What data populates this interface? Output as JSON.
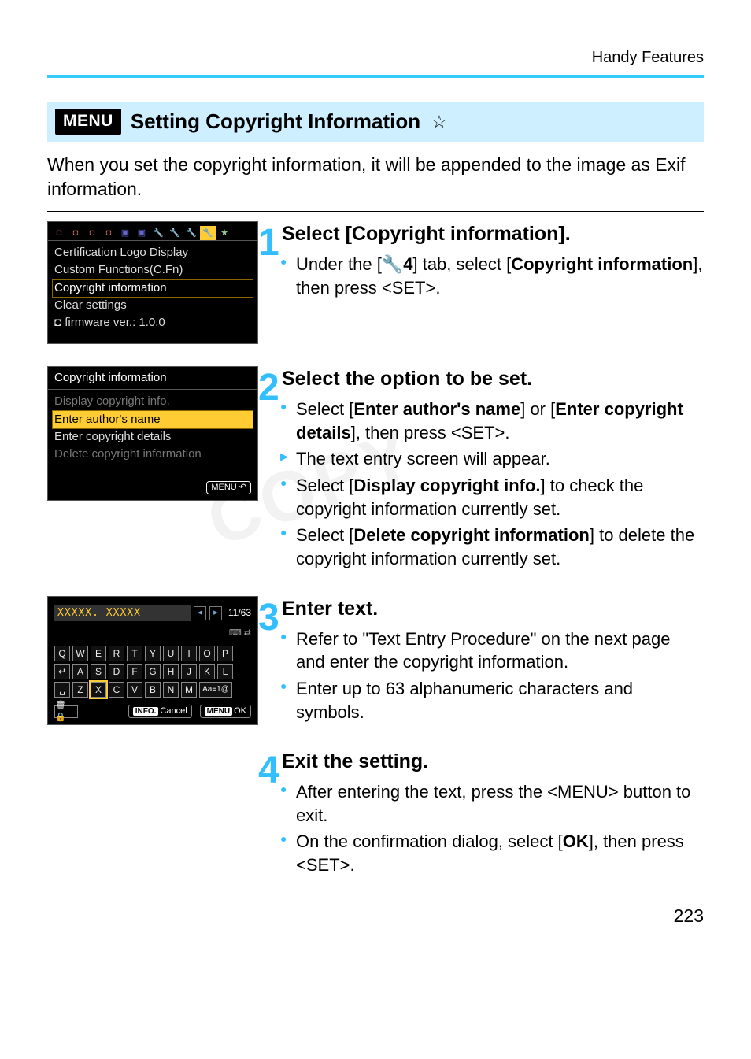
{
  "header": {
    "section": "Handy Features"
  },
  "heading": {
    "badge": "MENU",
    "title": "Setting Copyright Information",
    "star": "☆"
  },
  "intro": "When you set the copyright information, it will be appended to the image as Exif information.",
  "lcd_menu": {
    "tabs": [
      "◘",
      "◘",
      "◘",
      "◘",
      "▣",
      "▣",
      "🔧",
      "🔧",
      "🔧",
      "🔧",
      "★"
    ],
    "active_tab_index": 9,
    "items": [
      "Certification Logo Display",
      "Custom Functions(C.Fn)",
      "Copyright information",
      "Clear settings",
      "◘ firmware ver.: 1.0.0"
    ],
    "selected_index": 2
  },
  "lcd_copyright": {
    "title": "Copyright information",
    "items": [
      {
        "label": "Display copyright info.",
        "dim": true
      },
      {
        "label": "Enter author's name",
        "selected": true
      },
      {
        "label": "Enter copyright details"
      },
      {
        "label": "Delete copyright information",
        "dim": true
      }
    ],
    "foot_btn": "MENU",
    "foot_icon": "↶"
  },
  "lcd_keyboard": {
    "entry": "XXXXX. XXXXX",
    "count": "11/63",
    "input_icons": "⌨ ⇄",
    "rows": [
      [
        "Q",
        "W",
        "E",
        "R",
        "T",
        "Y",
        "U",
        "I",
        "O",
        "P"
      ],
      [
        "↵",
        "A",
        "S",
        "D",
        "F",
        "G",
        "H",
        "J",
        "K",
        "L"
      ],
      [
        "␣",
        "Z",
        "X",
        "C",
        "V",
        "B",
        "N",
        "M",
        "Aa≡1@"
      ]
    ],
    "selected": {
      "row": 2,
      "col": 2
    },
    "bottom": {
      "trash": "🗑 🔒",
      "info": "INFO.",
      "cancel": "Cancel",
      "menu": "MENU",
      "ok": "OK"
    }
  },
  "steps": [
    {
      "num": "1",
      "title": "Select [Copyright information].",
      "bullets": [
        {
          "html": "Under the [🔧<b>4</b>] tab, select [<b>Copyright information</b>], then press <<span class='set-glyph'>SET</span>>."
        }
      ]
    },
    {
      "num": "2",
      "title": "Select the option to be set.",
      "bullets": [
        {
          "html": "Select [<b>Enter author's name</b>] or [<b>Enter copyright details</b>], then press <<span class='set-glyph'>SET</span>>."
        },
        {
          "html": "The text entry screen will appear.",
          "tri": true
        },
        {
          "html": "Select [<b>Display copyright info.</b>] to check the copyright information currently set."
        },
        {
          "html": "Select [<b>Delete copyright information</b>] to delete the copyright information currently set."
        }
      ]
    },
    {
      "num": "3",
      "title": "Enter text.",
      "bullets": [
        {
          "html": "Refer to \"Text Entry Procedure\" on the next page and enter the copyright information."
        },
        {
          "html": "Enter up to 63 alphanumeric characters and symbols."
        }
      ]
    },
    {
      "num": "4",
      "title": "Exit the setting.",
      "bullets": [
        {
          "html": "After entering the text, press the <<span class='set-glyph'>MENU</span>> button to exit."
        },
        {
          "html": "On the confirmation dialog, select [<b>OK</b>], then press <<span class='set-glyph'>SET</span>>."
        }
      ]
    }
  ],
  "watermark": "COPY",
  "page_number": "223"
}
